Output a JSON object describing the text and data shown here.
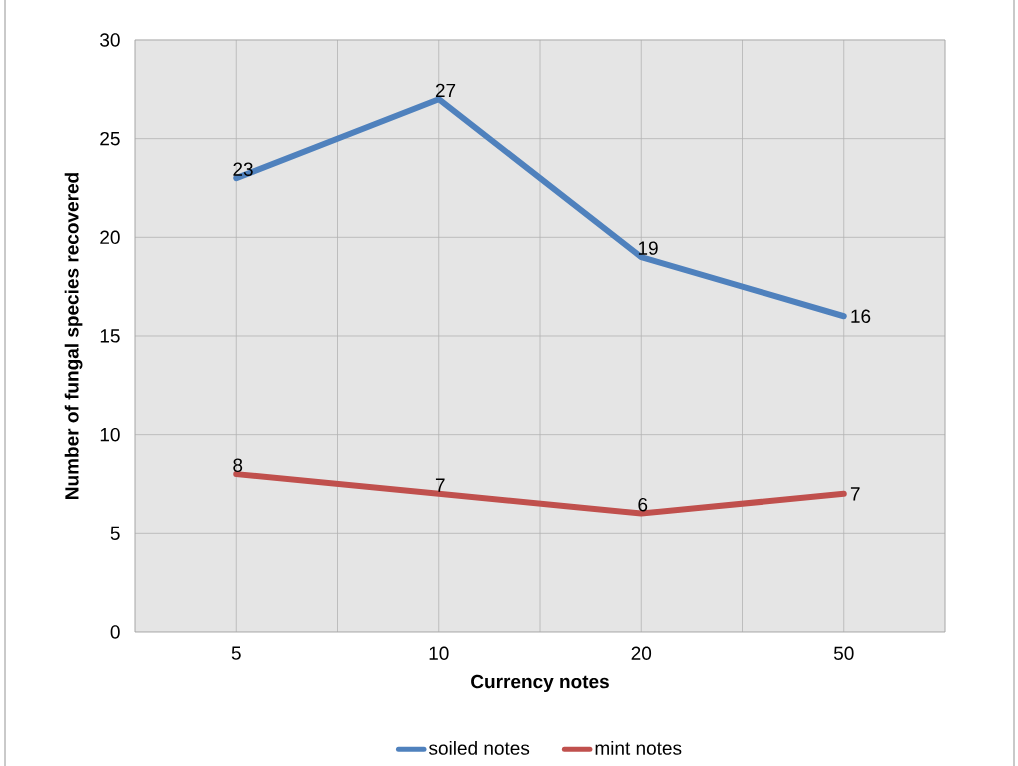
{
  "chart_data": {
    "type": "line",
    "xlabel": "Currency notes",
    "ylabel": "Number of fungal species recovered",
    "categories": [
      "5",
      "10",
      "20",
      "50"
    ],
    "series": [
      {
        "name": "soiled notes",
        "color": "#4f81bd",
        "values": [
          23,
          27,
          19,
          16
        ]
      },
      {
        "name": "mint notes",
        "color": "#c0504d",
        "values": [
          8,
          7,
          6,
          7
        ]
      }
    ],
    "ylim": [
      0,
      30
    ],
    "yticks": [
      0,
      5,
      10,
      15,
      20,
      25,
      30
    ],
    "grid": true,
    "legend": "bottom",
    "data_labels": true,
    "marker": "none",
    "line_style": "solid"
  }
}
